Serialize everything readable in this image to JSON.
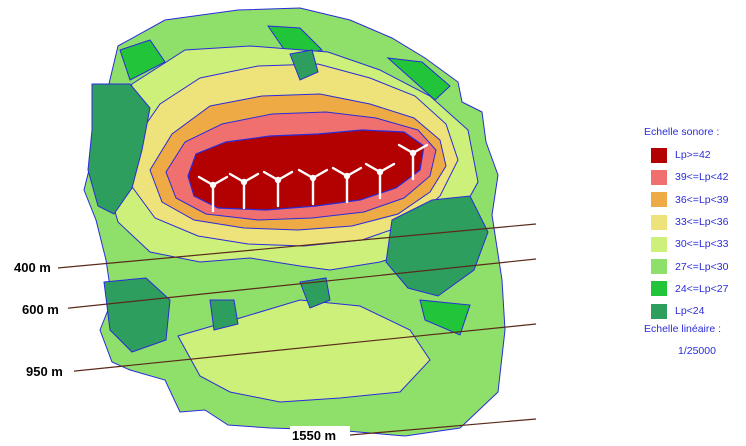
{
  "legend": {
    "title": "Echelle sonore :",
    "items": [
      {
        "label": "Lp>=42",
        "color": "#b30000"
      },
      {
        "label": "39<=Lp<42",
        "color": "#f07070"
      },
      {
        "label": "36<=Lp<39",
        "color": "#eeaa44"
      },
      {
        "label": "33<=Lp<36",
        "color": "#ede37a"
      },
      {
        "label": "30<=Lp<33",
        "color": "#cdf07a"
      },
      {
        "label": "27<=Lp<30",
        "color": "#8fe06a"
      },
      {
        "label": "24<=Lp<27",
        "color": "#22c43a"
      },
      {
        "label": "Lp<24",
        "color": "#2e9e5e"
      }
    ]
  },
  "scale": {
    "title": "Echelle linéaire :",
    "value": "1/25000"
  },
  "distance_lines": [
    {
      "label": "400 m"
    },
    {
      "label": "600 m"
    },
    {
      "label": "950 m"
    },
    {
      "label": "1550 m"
    }
  ],
  "turbines": {
    "count": 7,
    "color": "#ffffff"
  },
  "colors": {
    "contour_line": "#2b2bd9",
    "distance_line": "#5a2a1a",
    "text_accent": "#2b2bd9"
  }
}
